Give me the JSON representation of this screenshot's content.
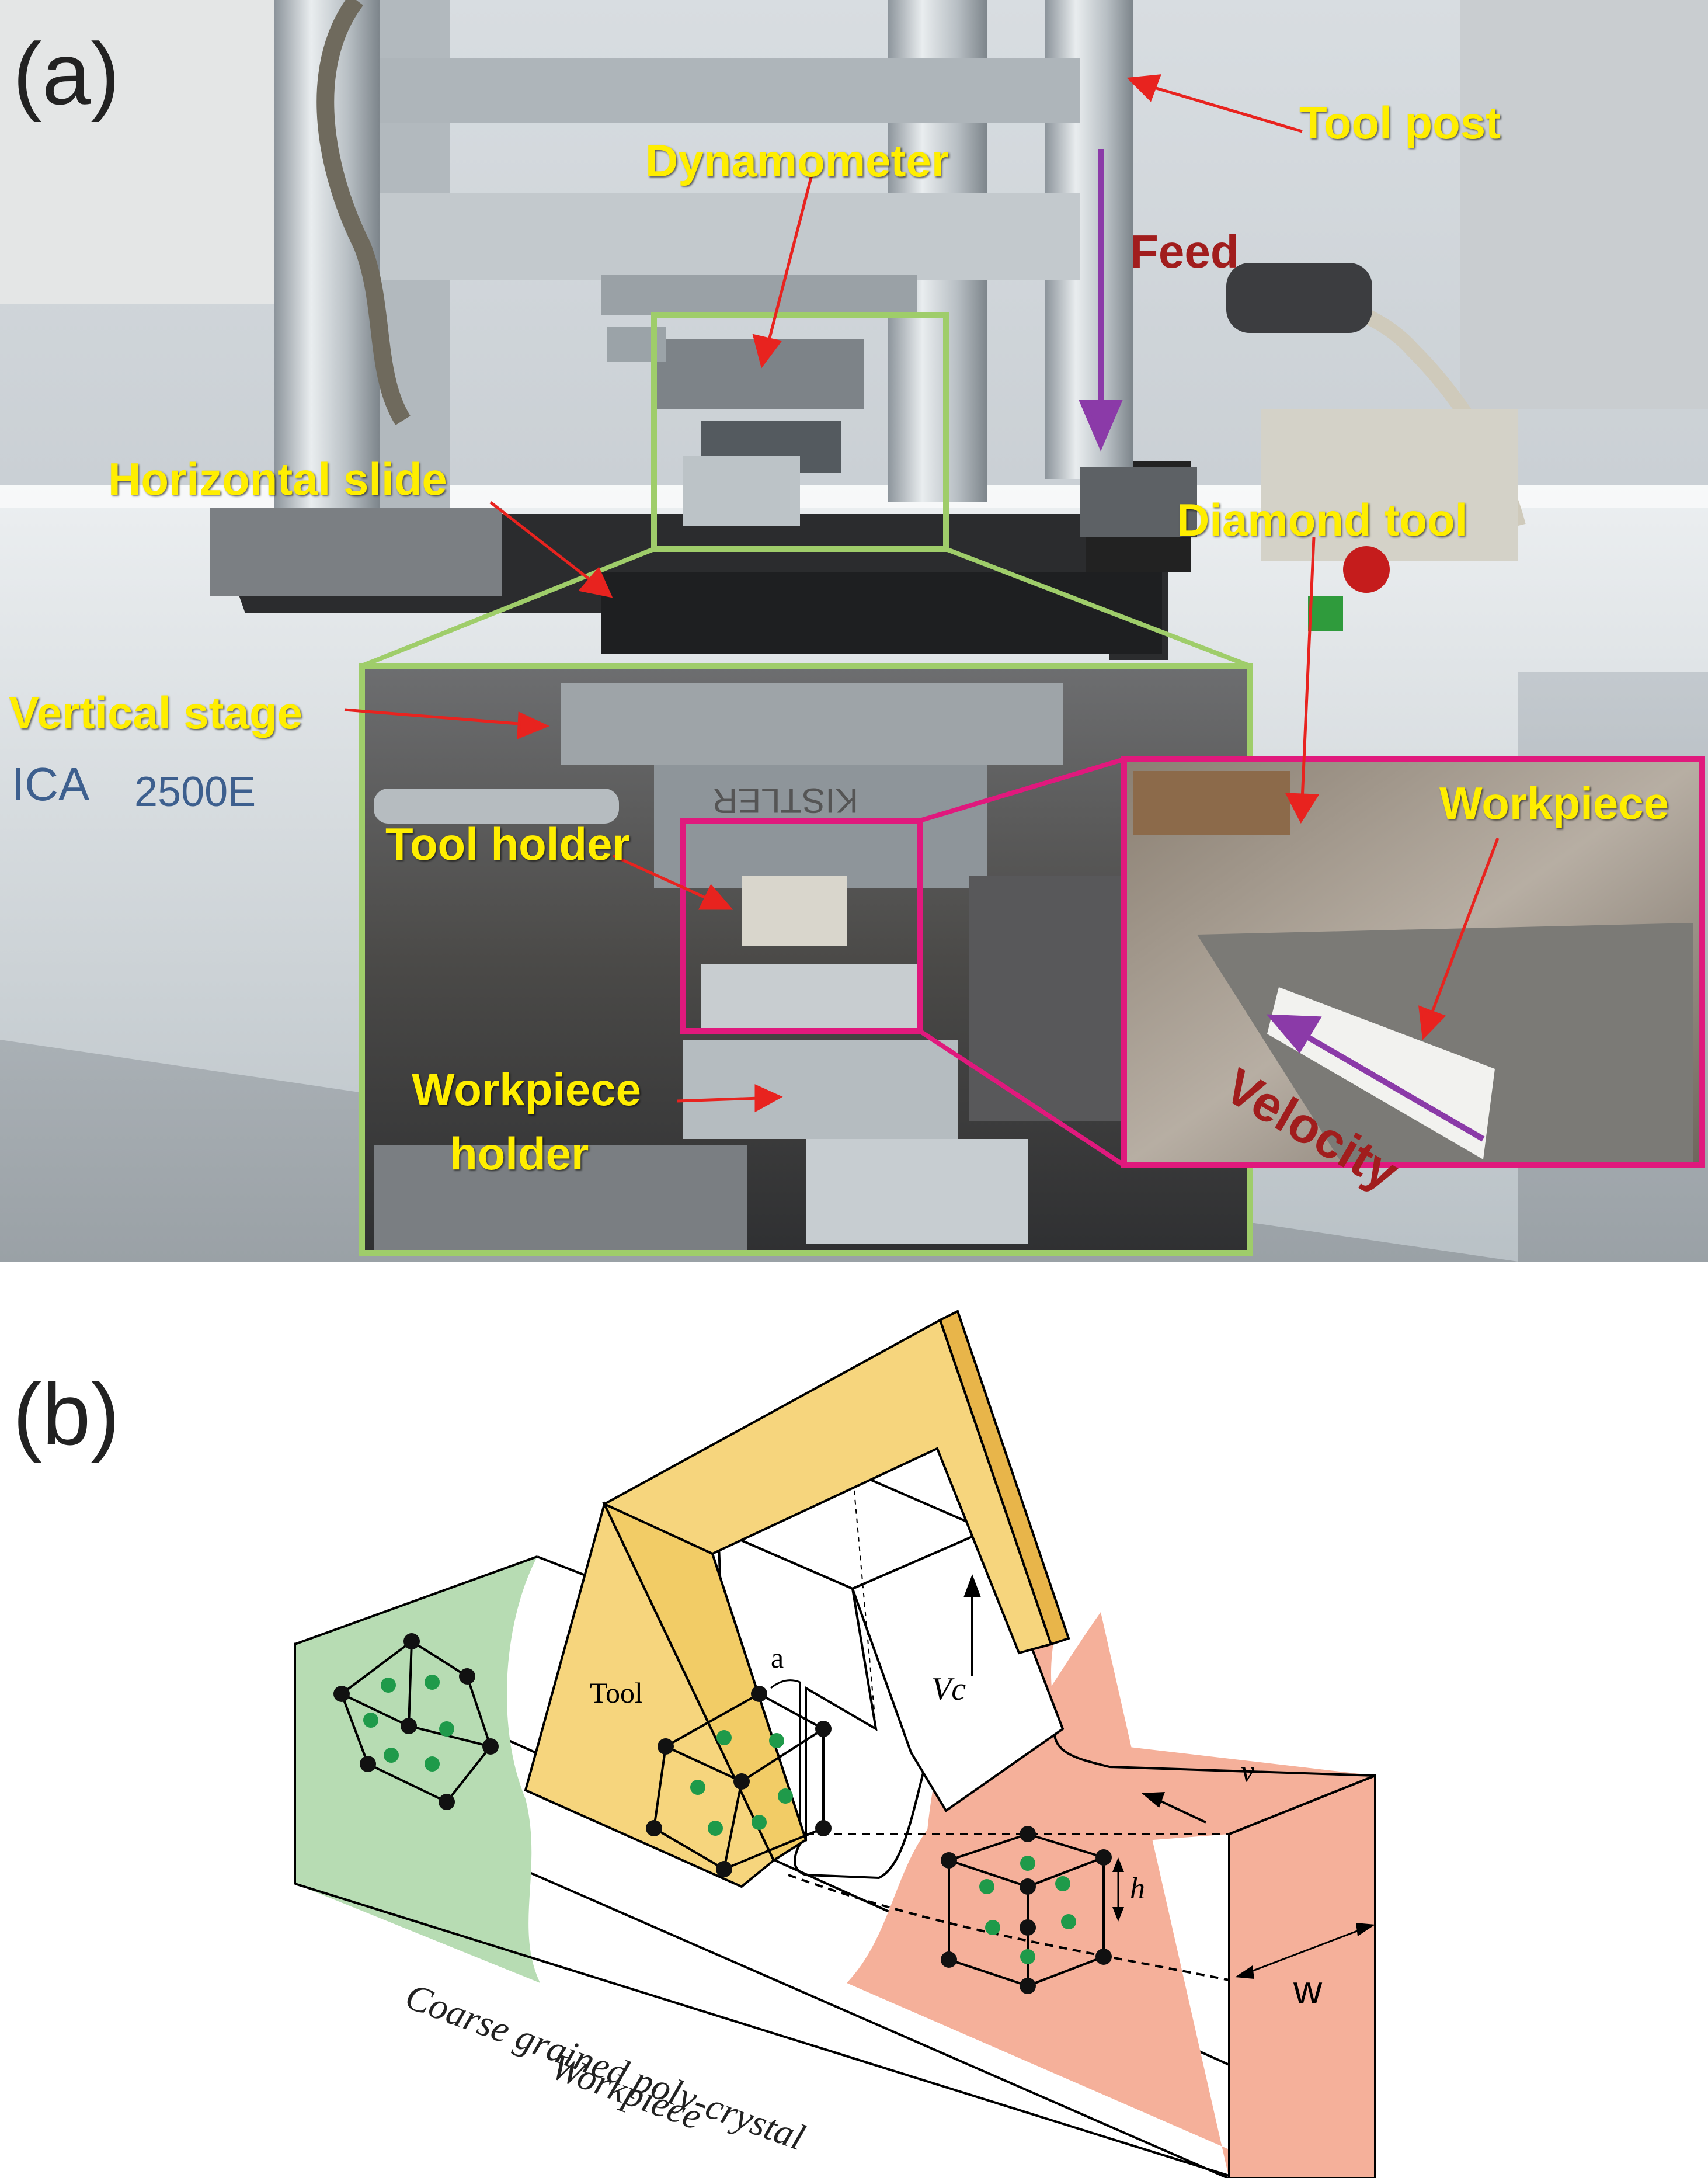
{
  "panel_a": {
    "letter": "(a)",
    "labels": {
      "tool_post": "Tool post",
      "dynamometer": "Dynamometer",
      "feed": "Feed",
      "horizontal_slide": "Horizontal slide",
      "diamond_tool": "Diamond tool",
      "vertical_stage": "Vertical stage",
      "tool_holder": "Tool holder",
      "workpiece": "Workpiece",
      "velocity": "Velocity",
      "workpiece_holder_1": "Workpiece",
      "workpiece_holder_2": "holder"
    },
    "machine_text_1": "ICA",
    "machine_text_2": "2500E",
    "sensor_text": "KISTLER",
    "colors": {
      "inset_green": "#9fcd6a",
      "inset_magenta": "#e0197d",
      "arrow_red": "#e8231f",
      "arrow_purple": "#8b3aa8"
    }
  },
  "panel_b": {
    "letter": "(b)",
    "labels": {
      "tool": "Tool",
      "angle": "a",
      "vc": "Vc",
      "v": "v",
      "h": "h",
      "w": "w",
      "caption_1": "Coarse grained poly-crystal",
      "caption_2": "Workpiece"
    },
    "colors": {
      "tool": "#f6d57d",
      "green_grain": "#b7dcb3",
      "orange_grain": "#f5b09a",
      "atom_corner": "#111111",
      "atom_face": "#1f9a4a"
    }
  }
}
